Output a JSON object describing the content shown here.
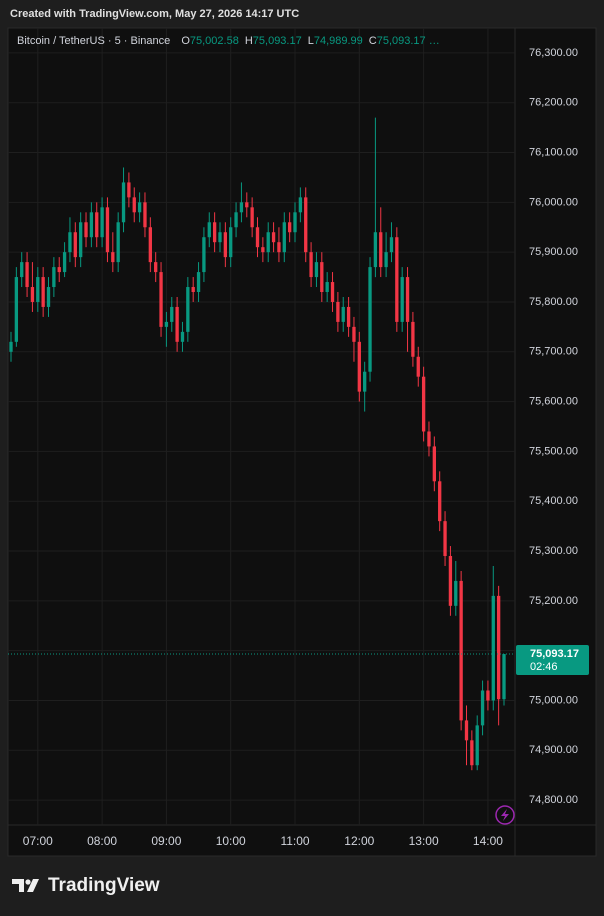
{
  "header": {
    "created": "Created with TradingView.com, May 27, 2026 14:17 UTC",
    "brand": "TradingView"
  },
  "chart_data": {
    "type": "candlestick",
    "symbol": "Bitcoin / TetherUS · 5 · Binance",
    "ohlc_legend": [
      {
        "key": "O",
        "value": 75002.58,
        "label": "75,002.58"
      },
      {
        "key": "H",
        "value": 75093.17,
        "label": "75,093.17"
      },
      {
        "key": "L",
        "value": 74989.99,
        "label": "74,989.99"
      },
      {
        "key": "C",
        "value": 75093.17,
        "label": "75,093.17 …"
      }
    ],
    "up_color": "#089981",
    "down_color": "#f23645",
    "x": [
      "06:35",
      "06:40",
      "06:45",
      "06:50",
      "06:55",
      "07:00",
      "07:05",
      "07:10",
      "07:15",
      "07:20",
      "07:25",
      "07:30",
      "07:35",
      "07:40",
      "07:45",
      "07:50",
      "07:55",
      "08:00",
      "08:05",
      "08:10",
      "08:15",
      "08:20",
      "08:25",
      "08:30",
      "08:35",
      "08:40",
      "08:45",
      "08:50",
      "08:55",
      "09:00",
      "09:05",
      "09:10",
      "09:15",
      "09:20",
      "09:25",
      "09:30",
      "09:35",
      "09:40",
      "09:45",
      "09:50",
      "09:55",
      "10:00",
      "10:05",
      "10:10",
      "10:15",
      "10:20",
      "10:25",
      "10:30",
      "10:35",
      "10:40",
      "10:45",
      "10:50",
      "10:55",
      "11:00",
      "11:05",
      "11:10",
      "11:15",
      "11:20",
      "11:25",
      "11:30",
      "11:35",
      "11:40",
      "11:45",
      "11:50",
      "11:55",
      "12:00",
      "12:05",
      "12:10",
      "12:15",
      "12:20",
      "12:25",
      "12:30",
      "12:35",
      "12:40",
      "12:45",
      "12:50",
      "12:55",
      "13:00",
      "13:05",
      "13:10",
      "13:15",
      "13:20",
      "13:25",
      "13:30",
      "13:35",
      "13:40",
      "13:45",
      "13:50",
      "13:55",
      "14:00",
      "14:05",
      "14:10",
      "14:15"
    ],
    "candles": [
      [
        75700,
        75740,
        75680,
        75720
      ],
      [
        75720,
        75870,
        75710,
        75850
      ],
      [
        75850,
        75900,
        75830,
        75880
      ],
      [
        75880,
        75900,
        75810,
        75830
      ],
      [
        75830,
        75880,
        75780,
        75800
      ],
      [
        75800,
        75870,
        75780,
        75850
      ],
      [
        75850,
        75870,
        75770,
        75790
      ],
      [
        75790,
        75850,
        75770,
        75830
      ],
      [
        75830,
        75890,
        75810,
        75870
      ],
      [
        75870,
        75890,
        75840,
        75860
      ],
      [
        75860,
        75920,
        75850,
        75900
      ],
      [
        75900,
        75970,
        75880,
        75940
      ],
      [
        75940,
        75960,
        75870,
        75890
      ],
      [
        75890,
        75980,
        75870,
        75960
      ],
      [
        75960,
        75980,
        75910,
        75930
      ],
      [
        75930,
        76000,
        75910,
        75980
      ],
      [
        75980,
        76000,
        75910,
        75930
      ],
      [
        75930,
        76010,
        75910,
        75990
      ],
      [
        75990,
        76010,
        75880,
        75900
      ],
      [
        75900,
        75940,
        75860,
        75880
      ],
      [
        75880,
        75980,
        75860,
        75960
      ],
      [
        75960,
        76070,
        75940,
        76040
      ],
      [
        76040,
        76060,
        75990,
        76010
      ],
      [
        76010,
        76030,
        75960,
        75980
      ],
      [
        75980,
        76020,
        75960,
        76000
      ],
      [
        76000,
        76020,
        75930,
        75950
      ],
      [
        75950,
        75970,
        75860,
        75880
      ],
      [
        75880,
        75900,
        75840,
        75860
      ],
      [
        75860,
        75880,
        75730,
        75750
      ],
      [
        75750,
        75780,
        75710,
        75760
      ],
      [
        75760,
        75810,
        75740,
        75790
      ],
      [
        75790,
        75810,
        75700,
        75720
      ],
      [
        75720,
        75760,
        75700,
        75740
      ],
      [
        75740,
        75850,
        75720,
        75830
      ],
      [
        75830,
        75850,
        75800,
        75820
      ],
      [
        75820,
        75880,
        75800,
        75860
      ],
      [
        75860,
        75950,
        75840,
        75930
      ],
      [
        75930,
        75980,
        75910,
        75960
      ],
      [
        75960,
        75980,
        75900,
        75920
      ],
      [
        75920,
        75960,
        75900,
        75940
      ],
      [
        75940,
        75960,
        75870,
        75890
      ],
      [
        75890,
        75970,
        75870,
        75950
      ],
      [
        75950,
        76000,
        75930,
        75980
      ],
      [
        75980,
        76040,
        75960,
        76000
      ],
      [
        76000,
        76020,
        75970,
        75990
      ],
      [
        75990,
        76010,
        75930,
        75950
      ],
      [
        75950,
        75970,
        75890,
        75910
      ],
      [
        75910,
        75930,
        75880,
        75900
      ],
      [
        75900,
        75960,
        75880,
        75940
      ],
      [
        75940,
        75960,
        75900,
        75920
      ],
      [
        75920,
        75950,
        75880,
        75900
      ],
      [
        75900,
        75980,
        75880,
        75960
      ],
      [
        75960,
        75980,
        75920,
        75940
      ],
      [
        75940,
        76000,
        75920,
        75980
      ],
      [
        75980,
        76030,
        75960,
        76010
      ],
      [
        76010,
        76030,
        75880,
        75900
      ],
      [
        75900,
        75920,
        75830,
        75850
      ],
      [
        75850,
        75900,
        75830,
        75880
      ],
      [
        75880,
        75900,
        75800,
        75820
      ],
      [
        75820,
        75860,
        75800,
        75840
      ],
      [
        75840,
        75860,
        75780,
        75800
      ],
      [
        75800,
        75820,
        75740,
        75760
      ],
      [
        75760,
        75810,
        75740,
        75790
      ],
      [
        75790,
        75810,
        75730,
        75750
      ],
      [
        75750,
        75770,
        75680,
        75720
      ],
      [
        75720,
        75740,
        75600,
        75620
      ],
      [
        75620,
        75680,
        75580,
        75660
      ],
      [
        75660,
        75890,
        75640,
        75870
      ],
      [
        75870,
        76170,
        75850,
        75940
      ],
      [
        75940,
        75990,
        75850,
        75870
      ],
      [
        75870,
        75940,
        75850,
        75900
      ],
      [
        75900,
        75960,
        75880,
        75930
      ],
      [
        75930,
        75950,
        75740,
        75760
      ],
      [
        75760,
        75870,
        75740,
        75850
      ],
      [
        75850,
        75870,
        75700,
        75760
      ],
      [
        75760,
        75780,
        75670,
        75690
      ],
      [
        75690,
        75710,
        75630,
        75650
      ],
      [
        75650,
        75670,
        75520,
        75540
      ],
      [
        75540,
        75560,
        75490,
        75510
      ],
      [
        75510,
        75530,
        75420,
        75440
      ],
      [
        75440,
        75460,
        75340,
        75360
      ],
      [
        75360,
        75380,
        75270,
        75290
      ],
      [
        75290,
        75310,
        75170,
        75190
      ],
      [
        75190,
        75280,
        75170,
        75240
      ],
      [
        75240,
        75260,
        74940,
        74960
      ],
      [
        74960,
        74990,
        74870,
        74920
      ],
      [
        74920,
        74940,
        74860,
        74870
      ],
      [
        74870,
        74970,
        74860,
        74950
      ],
      [
        74950,
        75040,
        74930,
        75020
      ],
      [
        75020,
        75040,
        74980,
        75000
      ],
      [
        75000,
        75270,
        74980,
        75210
      ],
      [
        75210,
        75230,
        74950,
        75002.58
      ],
      [
        75002.58,
        75093.17,
        74989.99,
        75093.17
      ]
    ],
    "last_price": {
      "value": 75093.17,
      "label": "75,093.17",
      "countdown": "02:46",
      "color": "#089981"
    },
    "ylim": [
      74750,
      76350
    ],
    "yticks": [
      {
        "value": 74800,
        "label": "74,800.00"
      },
      {
        "value": 74900,
        "label": "74,900.00"
      },
      {
        "value": 75000,
        "label": "75,000.00"
      },
      {
        "value": 75100,
        "label": "75,100.00"
      },
      {
        "value": 75200,
        "label": "75,200.00"
      },
      {
        "value": 75300,
        "label": "75,300.00"
      },
      {
        "value": 75400,
        "label": "75,400.00"
      },
      {
        "value": 75500,
        "label": "75,500.00"
      },
      {
        "value": 75600,
        "label": "75,600.00"
      },
      {
        "value": 75700,
        "label": "75,700.00"
      },
      {
        "value": 75800,
        "label": "75,800.00"
      },
      {
        "value": 75900,
        "label": "75,900.00"
      },
      {
        "value": 76000,
        "label": "76,000.00"
      },
      {
        "value": 76100,
        "label": "76,100.00"
      },
      {
        "value": 76200,
        "label": "76,200.00"
      },
      {
        "value": 76300,
        "label": "76,300.00"
      }
    ],
    "xticks": [
      "07:00",
      "08:00",
      "09:00",
      "10:00",
      "11:00",
      "12:00",
      "13:00",
      "14:00"
    ],
    "grid": true
  }
}
